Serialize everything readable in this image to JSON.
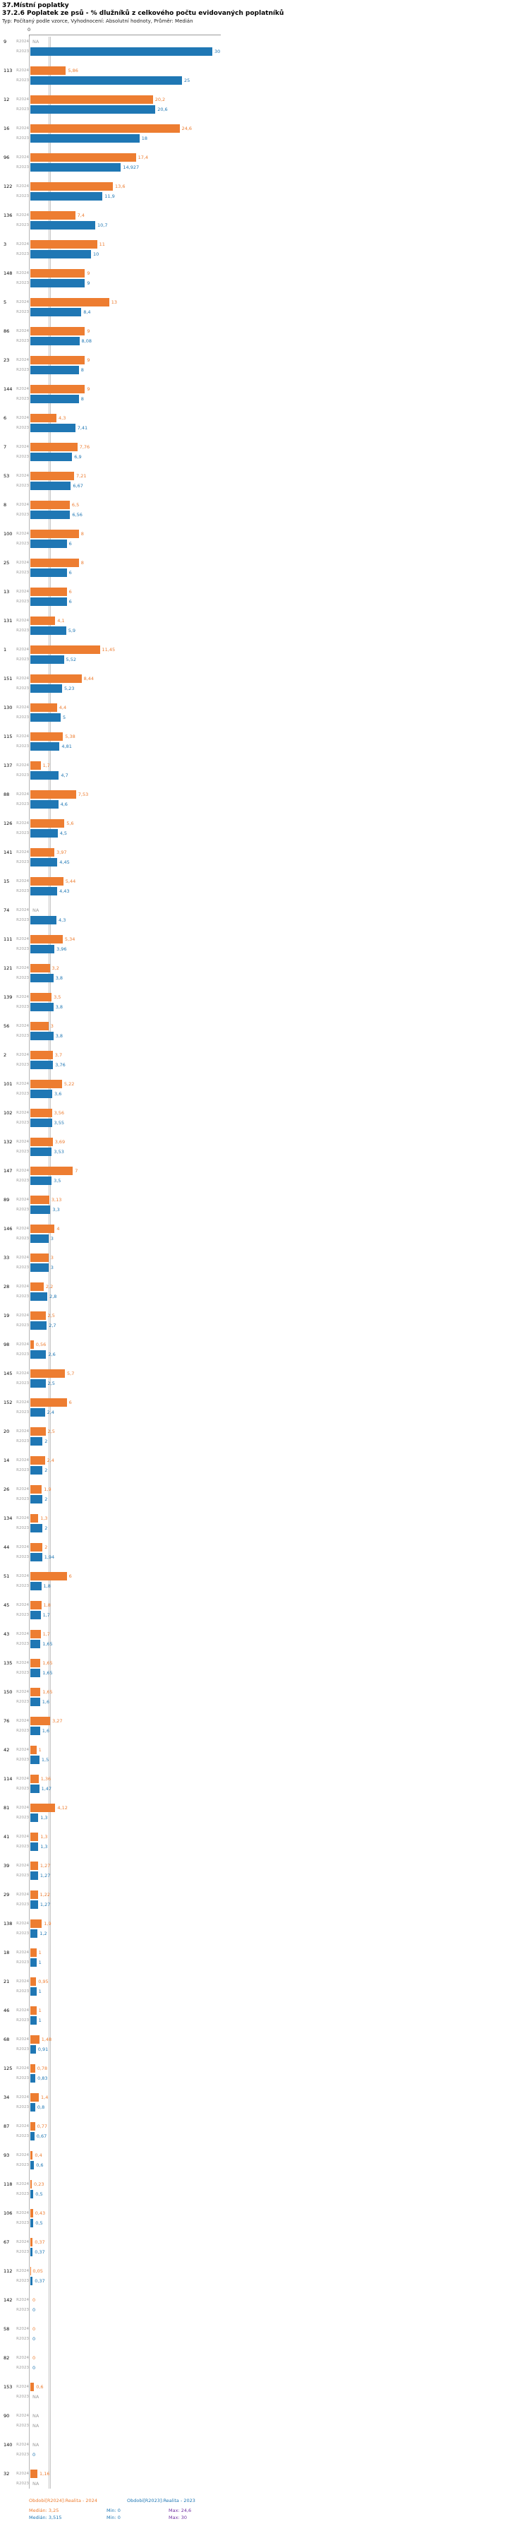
{
  "header": {
    "title": "37.Místní poplatky",
    "subtitle": "37.2.6 Poplatek ze psů - % dlužníků z celkového počtu evidovaných poplatníků",
    "meta": "Typ: Počítaný podle vzorce, Vyhodnocení: Absolutní hodnoty, Průměr: Medián"
  },
  "axis": {
    "zero_label": "0"
  },
  "chart_data": {
    "type": "bar",
    "orientation": "horizontal",
    "title": "37.2.6 Poplatek ze psů - % dlužníků z celkového počtu evidovaných poplatníků",
    "series": [
      "R2024",
      "R2023"
    ],
    "series_labels": {
      "R2024": "Realita - 2024",
      "R2023": "Realita - 2023"
    },
    "series_colors": {
      "R2024": "#ED7D31",
      "R2023": "#1F77B4"
    },
    "xlim": [
      0,
      30
    ],
    "median_lines": [
      3.25,
      3.515
    ],
    "na_text": "NA",
    "groups": [
      {
        "id": "9",
        "R2024": "NA",
        "R2023": "30"
      },
      {
        "id": "113",
        "R2024": "5,86",
        "R2023": "25"
      },
      {
        "id": "12",
        "R2024": "20,2",
        "R2023": "20,6"
      },
      {
        "id": "16",
        "R2024": "24,6",
        "R2023": "18"
      },
      {
        "id": "96",
        "R2024": "17,4",
        "R2023": "14,927"
      },
      {
        "id": "122",
        "R2024": "13,6",
        "R2023": "11,9"
      },
      {
        "id": "136",
        "R2024": "7,4",
        "R2023": "10,7"
      },
      {
        "id": "3",
        "R2024": "11",
        "R2023": "10"
      },
      {
        "id": "148",
        "R2024": "9",
        "R2023": "9"
      },
      {
        "id": "5",
        "R2024": "13",
        "R2023": "8,4"
      },
      {
        "id": "86",
        "R2024": "9",
        "R2023": "8,08"
      },
      {
        "id": "23",
        "R2024": "9",
        "R2023": "8"
      },
      {
        "id": "144",
        "R2024": "9",
        "R2023": "8"
      },
      {
        "id": "6",
        "R2024": "4,3",
        "R2023": "7,41"
      },
      {
        "id": "7",
        "R2024": "7,76",
        "R2023": "6,9"
      },
      {
        "id": "53",
        "R2024": "7,21",
        "R2023": "6,67"
      },
      {
        "id": "8",
        "R2024": "6,5",
        "R2023": "6,56"
      },
      {
        "id": "100",
        "R2024": "8",
        "R2023": "6"
      },
      {
        "id": "25",
        "R2024": "8",
        "R2023": "6"
      },
      {
        "id": "13",
        "R2024": "6",
        "R2023": "6"
      },
      {
        "id": "131",
        "R2024": "4,1",
        "R2023": "5,9"
      },
      {
        "id": "1",
        "R2024": "11,45",
        "R2023": "5,52"
      },
      {
        "id": "151",
        "R2024": "8,44",
        "R2023": "5,23"
      },
      {
        "id": "130",
        "R2024": "4,4",
        "R2023": "5"
      },
      {
        "id": "115",
        "R2024": "5,38",
        "R2023": "4,81"
      },
      {
        "id": "137",
        "R2024": "1,7",
        "R2023": "4,7"
      },
      {
        "id": "88",
        "R2024": "7,53",
        "R2023": "4,6"
      },
      {
        "id": "126",
        "R2024": "5,6",
        "R2023": "4,5"
      },
      {
        "id": "141",
        "R2024": "3,97",
        "R2023": "4,45"
      },
      {
        "id": "15",
        "R2024": "5,44",
        "R2023": "4,43"
      },
      {
        "id": "74",
        "R2024": "NA",
        "R2023": "4,3"
      },
      {
        "id": "111",
        "R2024": "5,34",
        "R2023": "3,96"
      },
      {
        "id": "121",
        "R2024": "3,2",
        "R2023": "3,8"
      },
      {
        "id": "139",
        "R2024": "3,5",
        "R2023": "3,8"
      },
      {
        "id": "56",
        "R2024": "3",
        "R2023": "3,8"
      },
      {
        "id": "2",
        "R2024": "3,7",
        "R2023": "3,76"
      },
      {
        "id": "101",
        "R2024": "5,22",
        "R2023": "3,6"
      },
      {
        "id": "102",
        "R2024": "3,56",
        "R2023": "3,55"
      },
      {
        "id": "132",
        "R2024": "3,69",
        "R2023": "3,53"
      },
      {
        "id": "147",
        "R2024": "7",
        "R2023": "3,5"
      },
      {
        "id": "89",
        "R2024": "3,13",
        "R2023": "3,3"
      },
      {
        "id": "146",
        "R2024": "4",
        "R2023": "3"
      },
      {
        "id": "33",
        "R2024": "3",
        "R2023": "3"
      },
      {
        "id": "28",
        "R2024": "2,2",
        "R2023": "2,8"
      },
      {
        "id": "19",
        "R2024": "2,5",
        "R2023": "2,7"
      },
      {
        "id": "98",
        "R2024": "0,56",
        "R2023": "2,6"
      },
      {
        "id": "145",
        "R2024": "5,7",
        "R2023": "2,5"
      },
      {
        "id": "152",
        "R2024": "6",
        "R2023": "2,4"
      },
      {
        "id": "20",
        "R2024": "2,5",
        "R2023": "2"
      },
      {
        "id": "14",
        "R2024": "2,4",
        "R2023": "2"
      },
      {
        "id": "26",
        "R2024": "1,9",
        "R2023": "2"
      },
      {
        "id": "134",
        "R2024": "1,3",
        "R2023": "2"
      },
      {
        "id": "44",
        "R2024": "2",
        "R2023": "1,94"
      },
      {
        "id": "51",
        "R2024": "6",
        "R2023": "1,8"
      },
      {
        "id": "45",
        "R2024": "1,8",
        "R2023": "1,7"
      },
      {
        "id": "43",
        "R2024": "1,7",
        "R2023": "1,65"
      },
      {
        "id": "135",
        "R2024": "1,65",
        "R2023": "1,65"
      },
      {
        "id": "150",
        "R2024": "1,65",
        "R2023": "1,6"
      },
      {
        "id": "76",
        "R2024": "3,27",
        "R2023": "1,6"
      },
      {
        "id": "42",
        "R2024": "1",
        "R2023": "1,5"
      },
      {
        "id": "114",
        "R2024": "1,36",
        "R2023": "1,47"
      },
      {
        "id": "81",
        "R2024": "4,12",
        "R2023": "1,3"
      },
      {
        "id": "41",
        "R2024": "1,3",
        "R2023": "1,3"
      },
      {
        "id": "39",
        "R2024": "1,27",
        "R2023": "1,27"
      },
      {
        "id": "29",
        "R2024": "1,22",
        "R2023": "1,27"
      },
      {
        "id": "138",
        "R2024": "1,9",
        "R2023": "1,2"
      },
      {
        "id": "18",
        "R2024": "1",
        "R2023": "1"
      },
      {
        "id": "21",
        "R2024": "0,95",
        "R2023": "1"
      },
      {
        "id": "46",
        "R2024": "1",
        "R2023": "1"
      },
      {
        "id": "68",
        "R2024": "1,48",
        "R2023": "0,91"
      },
      {
        "id": "125",
        "R2024": "0,78",
        "R2023": "0,83"
      },
      {
        "id": "34",
        "R2024": "1,4",
        "R2023": "0,8"
      },
      {
        "id": "87",
        "R2024": "0,77",
        "R2023": "0,67"
      },
      {
        "id": "93",
        "R2024": "0,4",
        "R2023": "0,6"
      },
      {
        "id": "118",
        "R2024": "0,23",
        "R2023": "0,5"
      },
      {
        "id": "106",
        "R2024": "0,43",
        "R2023": "0,5"
      },
      {
        "id": "67",
        "R2024": "0,37",
        "R2023": "0,37"
      },
      {
        "id": "112",
        "R2024": "0,05",
        "R2023": "0,37"
      },
      {
        "id": "142",
        "R2024": "0",
        "R2023": "0"
      },
      {
        "id": "58",
        "R2024": "0",
        "R2023": "0"
      },
      {
        "id": "82",
        "R2024": "0",
        "R2023": "0"
      },
      {
        "id": "153",
        "R2024": "0,6",
        "R2023": "NA"
      },
      {
        "id": "90",
        "R2024": "NA",
        "R2023": "NA"
      },
      {
        "id": "140",
        "R2024": "NA",
        "R2023": "0"
      },
      {
        "id": "32",
        "R2024": "1,16",
        "R2023": "NA"
      }
    ]
  },
  "legend": {
    "r2024": "Obdobi[R2024]:Realita - 2024",
    "r2023": "Obdobi[R2023]:Realita - 2023"
  },
  "stats": {
    "r2024": {
      "median": "Medián: 3,25",
      "min": "Min: 0",
      "max": "Max: 24,6"
    },
    "r2023": {
      "median": "Medián: 3,515",
      "min": "Min: 0",
      "max": "Max: 30"
    }
  },
  "colors": {
    "r2024": "#ED7D31",
    "r2023": "#1F77B4",
    "max_stat": "#7030A0",
    "median_line": "#C4C4C4"
  }
}
